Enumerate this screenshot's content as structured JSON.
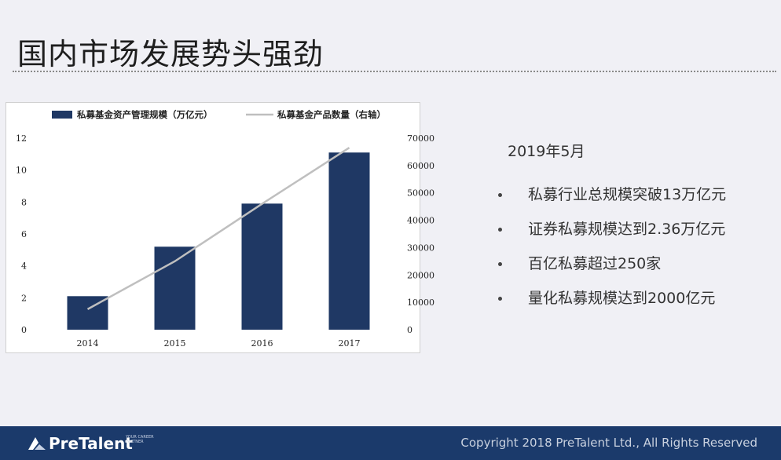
{
  "title": "国内市场发展势头强劲",
  "chart_data": {
    "type": "bar",
    "categories": [
      "2014",
      "2015",
      "2016",
      "2017"
    ],
    "series": [
      {
        "name": "私募基金资产管理规模（万亿元）",
        "kind": "bar",
        "axis": "left",
        "values": [
          2.1,
          5.2,
          7.9,
          11.1
        ],
        "color": "#1f3864"
      },
      {
        "name": "私募基金产品数量（右轴）",
        "kind": "line",
        "axis": "right",
        "values": [
          7500,
          25000,
          46000,
          66500
        ],
        "color": "#bfbfbf"
      }
    ],
    "left_axis": {
      "ylim": [
        0,
        12
      ],
      "ticks": [
        "0",
        "2",
        "4",
        "6",
        "8",
        "10",
        "12"
      ]
    },
    "right_axis": {
      "ylim": [
        0,
        70000
      ],
      "ticks": [
        "0",
        "10000",
        "20000",
        "30000",
        "40000",
        "50000",
        "60000",
        "70000"
      ]
    },
    "legend_position": "top"
  },
  "info": {
    "date": "2019年5月",
    "bullets": [
      "私募行业总规模突破13万亿元",
      "证券私募规模达到2.36万亿元",
      "百亿私募超过250家",
      "量化私募规模达到2000亿元"
    ]
  },
  "footer": {
    "logo": "PreTalent",
    "tagline": "YOUR CAREER PARTNER",
    "copyright": "Copyright 2018 PreTalent Ltd., All Rights Reserved"
  },
  "colors": {
    "footer_bg": "#1b3a6b",
    "bar": "#1f3864",
    "line": "#bfbfbf"
  }
}
